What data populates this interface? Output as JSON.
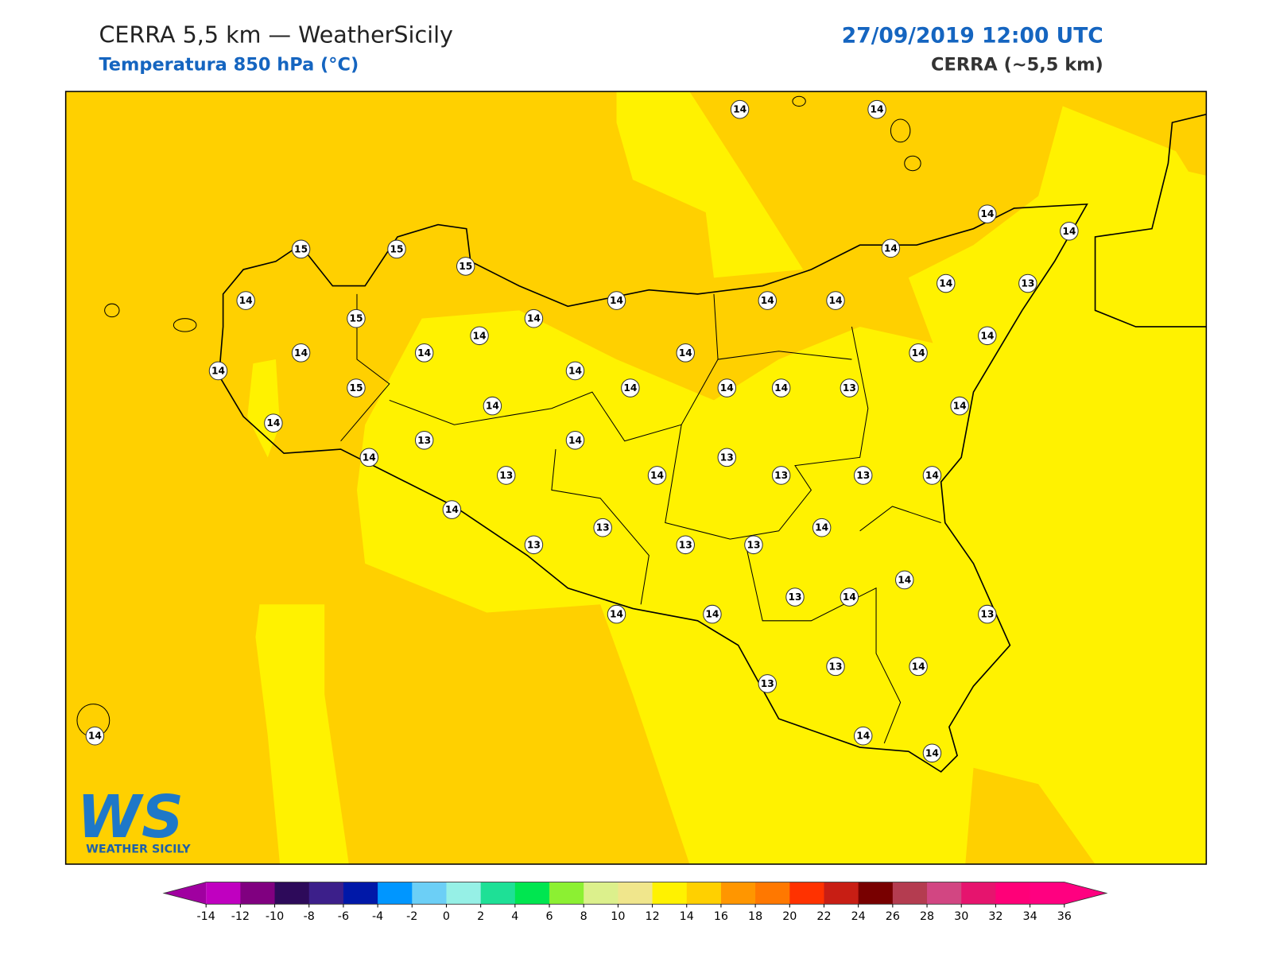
{
  "header": {
    "title": "CERRA 5,5 km — WeatherSicily",
    "subtitle": "Temperatura 850 hPa (°C)",
    "datetime": "27/09/2019 12:00 UTC",
    "model": "CERRA (~5,5 km)"
  },
  "stations": [
    14,
    14,
    14,
    14,
    15,
    15,
    15,
    14,
    14,
    13,
    14,
    14,
    14,
    14,
    15,
    14,
    14,
    14,
    14,
    14,
    14,
    14,
    14,
    14,
    15,
    14,
    14,
    14,
    13,
    14,
    14,
    14,
    13,
    14,
    14,
    13,
    13,
    14,
    13,
    13,
    14,
    14,
    14,
    13,
    13,
    13,
    13,
    14,
    13,
    14,
    14,
    14,
    13,
    13,
    14,
    13,
    14,
    14,
    14
  ],
  "logo": {
    "mark": "WS",
    "text": "WEATHER SICILY"
  },
  "colorbar": {
    "ticks": [
      -14,
      -12,
      -10,
      -8,
      -6,
      -4,
      -2,
      0,
      2,
      4,
      6,
      8,
      10,
      12,
      14,
      16,
      18,
      20,
      22,
      24,
      26,
      28,
      30,
      32,
      34,
      36
    ],
    "under_color": "#a000a0",
    "over_color": "#ff0080",
    "colors": [
      "#c000c0",
      "#800080",
      "#2d0a5a",
      "#3c1f8a",
      "#0018a8",
      "#0096ff",
      "#6ccff6",
      "#96f0e6",
      "#1ee096",
      "#00e650",
      "#8cf032",
      "#dcf08c",
      "#f0e68c",
      "#fff200",
      "#ffd000",
      "#ff9600",
      "#ff7800",
      "#ff3200",
      "#c81e14",
      "#780000",
      "#b43c50",
      "#d24682",
      "#e6146e",
      "#ff0078",
      "#ff0080"
    ]
  }
}
